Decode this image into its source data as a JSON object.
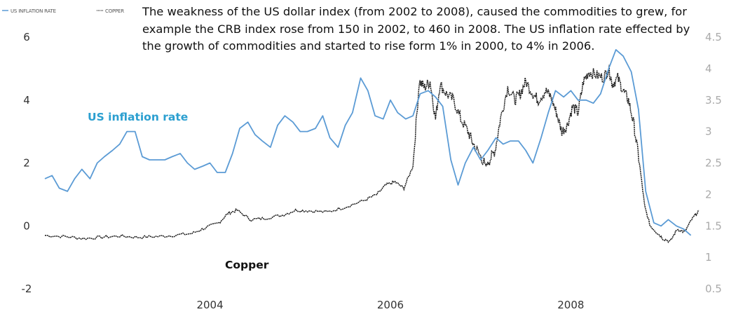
{
  "chart_data": {
    "type": "line",
    "legend": [
      {
        "name": "US INFLATION RATE",
        "color": "#5b9bd5",
        "style": "solid"
      },
      {
        "name": "COPPER",
        "color": "#222222",
        "style": "dotted"
      }
    ],
    "annotation_lines": [
      "The weakness of the US dollar index (from 2002 to 2008), caused the commodities to grew, for",
      "example the CRB index rose from 150 in 2002, to 460 in 2008. The US inflation rate effected by",
      "the growth of commodities and started to rise form 1% in 2000, to 4% in 2006."
    ],
    "series_labels": {
      "inflation": "US inflation rate",
      "copper": "Copper"
    },
    "x_ticks": [
      "2004",
      "2006",
      "2008"
    ],
    "x_tick_values": [
      2004,
      2006,
      2008
    ],
    "xlim": [
      2002.17,
      2009.45
    ],
    "left_axis": {
      "ticks": [
        "6",
        "4",
        "2",
        "0",
        "-2"
      ],
      "tick_values": [
        6,
        4,
        2,
        0,
        -2
      ],
      "ylim": [
        -2,
        6
      ]
    },
    "right_axis": {
      "ticks": [
        "4.5",
        "4",
        "3.5",
        "3",
        "2.5",
        "2",
        "1.5",
        "1",
        "0.5"
      ],
      "tick_values": [
        4.5,
        4,
        3.5,
        3,
        2.5,
        2,
        1.5,
        1,
        0.5
      ],
      "ylim": [
        0.5,
        4.5
      ]
    },
    "grid": false,
    "legend_position": "top-left",
    "series": [
      {
        "name": "US INFLATION RATE",
        "axis": "left",
        "x": [
          2002.17,
          2002.25,
          2002.33,
          2002.42,
          2002.5,
          2002.58,
          2002.67,
          2002.75,
          2002.83,
          2002.92,
          2003.0,
          2003.08,
          2003.17,
          2003.25,
          2003.33,
          2003.42,
          2003.5,
          2003.58,
          2003.67,
          2003.75,
          2003.83,
          2003.92,
          2004.0,
          2004.08,
          2004.17,
          2004.25,
          2004.33,
          2004.42,
          2004.5,
          2004.58,
          2004.67,
          2004.75,
          2004.83,
          2004.92,
          2005.0,
          2005.08,
          2005.17,
          2005.25,
          2005.33,
          2005.42,
          2005.5,
          2005.58,
          2005.67,
          2005.75,
          2005.83,
          2005.92,
          2006.0,
          2006.08,
          2006.17,
          2006.25,
          2006.33,
          2006.42,
          2006.5,
          2006.58,
          2006.67,
          2006.75,
          2006.83,
          2006.92,
          2007.0,
          2007.08,
          2007.17,
          2007.25,
          2007.33,
          2007.42,
          2007.5,
          2007.58,
          2007.67,
          2007.75,
          2007.83,
          2007.92,
          2008.0,
          2008.08,
          2008.17,
          2008.25,
          2008.33,
          2008.42,
          2008.5,
          2008.58,
          2008.67,
          2008.75,
          2008.83,
          2008.92,
          2009.0,
          2009.08,
          2009.17,
          2009.25,
          2009.33
        ],
        "values": [
          1.5,
          1.6,
          1.2,
          1.1,
          1.5,
          1.8,
          1.5,
          2.0,
          2.2,
          2.4,
          2.6,
          3.0,
          3.0,
          2.2,
          2.1,
          2.1,
          2.1,
          2.2,
          2.3,
          2.0,
          1.8,
          1.9,
          2.0,
          1.7,
          1.7,
          2.3,
          3.1,
          3.3,
          2.9,
          2.7,
          2.5,
          3.2,
          3.5,
          3.3,
          3.0,
          3.0,
          3.1,
          3.5,
          2.8,
          2.5,
          3.2,
          3.6,
          4.7,
          4.3,
          3.5,
          3.4,
          4.0,
          3.6,
          3.4,
          3.5,
          4.2,
          4.3,
          4.1,
          3.8,
          2.1,
          1.3,
          2.0,
          2.5,
          2.1,
          2.4,
          2.8,
          2.6,
          2.7,
          2.7,
          2.4,
          2.0,
          2.8,
          3.6,
          4.3,
          4.1,
          4.3,
          4.0,
          4.0,
          3.9,
          4.2,
          5.0,
          5.6,
          5.4,
          4.9,
          3.7,
          1.1,
          0.1,
          0.0,
          0.2,
          -0.0,
          -0.1,
          -0.3
        ]
      },
      {
        "name": "COPPER",
        "axis": "right",
        "x": [
          2002.17,
          2002.4,
          2002.6,
          2002.8,
          2003.0,
          2003.2,
          2003.4,
          2003.6,
          2003.8,
          2003.95,
          2004.1,
          2004.2,
          2004.3,
          2004.45,
          2004.6,
          2004.8,
          2004.95,
          2005.1,
          2005.3,
          2005.5,
          2005.7,
          2005.85,
          2005.95,
          2006.05,
          2006.15,
          2006.25,
          2006.32,
          2006.38,
          2006.44,
          2006.5,
          2006.55,
          2006.62,
          2006.7,
          2006.78,
          2006.86,
          2006.92,
          2007.0,
          2007.06,
          2007.1,
          2007.16,
          2007.22,
          2007.3,
          2007.38,
          2007.44,
          2007.5,
          2007.58,
          2007.64,
          2007.72,
          2007.78,
          2007.84,
          2007.9,
          2007.96,
          2008.02,
          2008.08,
          2008.14,
          2008.2,
          2008.28,
          2008.36,
          2008.42,
          2008.46,
          2008.52,
          2008.58,
          2008.64,
          2008.7,
          2008.76,
          2008.82,
          2008.88,
          2008.95,
          2009.02,
          2009.1,
          2009.18,
          2009.26,
          2009.34,
          2009.42
        ],
        "values": [
          1.35,
          1.33,
          1.3,
          1.32,
          1.34,
          1.32,
          1.33,
          1.35,
          1.38,
          1.47,
          1.55,
          1.7,
          1.75,
          1.6,
          1.62,
          1.67,
          1.75,
          1.74,
          1.72,
          1.8,
          1.9,
          2.0,
          2.15,
          2.2,
          2.1,
          2.45,
          3.8,
          3.7,
          3.8,
          3.2,
          3.75,
          3.6,
          3.5,
          3.2,
          3.0,
          2.8,
          2.6,
          2.45,
          2.55,
          2.7,
          3.2,
          3.7,
          3.5,
          3.6,
          3.8,
          3.6,
          3.5,
          3.65,
          3.55,
          3.3,
          3.0,
          3.1,
          3.4,
          3.3,
          3.8,
          3.95,
          3.9,
          3.85,
          4.0,
          3.75,
          3.85,
          3.65,
          3.5,
          3.1,
          2.5,
          1.8,
          1.5,
          1.4,
          1.3,
          1.25,
          1.45,
          1.4,
          1.6,
          1.75
        ]
      }
    ]
  }
}
